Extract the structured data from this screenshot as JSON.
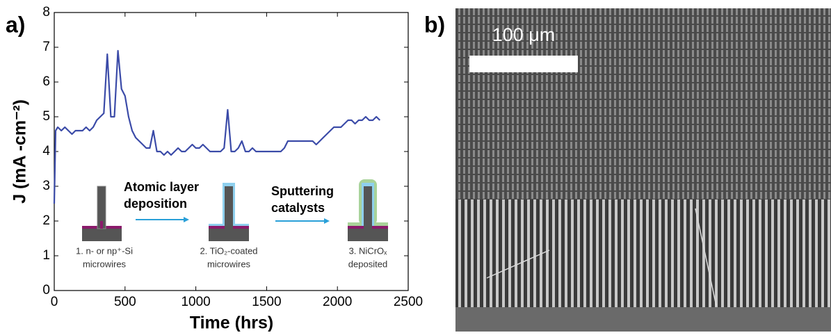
{
  "panels": {
    "a": "a)",
    "b": "b)"
  },
  "chart_data": {
    "type": "line",
    "xlabel": "Time (hrs)",
    "ylabel": "J (mA -cm⁻²)",
    "xlim": [
      0,
      2500
    ],
    "xticks": [
      0,
      500,
      1000,
      1500,
      2000,
      2500
    ],
    "ylim": [
      0,
      8
    ],
    "yticks": [
      0,
      1,
      2,
      3,
      4,
      5,
      6,
      7,
      8
    ],
    "x": [
      0,
      10,
      25,
      50,
      75,
      100,
      125,
      150,
      175,
      200,
      225,
      250,
      275,
      300,
      325,
      350,
      375,
      400,
      425,
      450,
      475,
      500,
      525,
      550,
      575,
      600,
      625,
      650,
      675,
      700,
      725,
      750,
      775,
      800,
      825,
      850,
      875,
      900,
      925,
      950,
      975,
      1000,
      1025,
      1050,
      1075,
      1100,
      1125,
      1150,
      1175,
      1200,
      1225,
      1250,
      1275,
      1300,
      1325,
      1350,
      1375,
      1400,
      1425,
      1450,
      1475,
      1500,
      1525,
      1550,
      1575,
      1600,
      1625,
      1650,
      1675,
      1700,
      1725,
      1750,
      1775,
      1800,
      1825,
      1850,
      1875,
      1900,
      1925,
      1950,
      1975,
      2000,
      2025,
      2050,
      2075,
      2100,
      2125,
      2150,
      2175,
      2200,
      2225,
      2250,
      2275,
      2300
    ],
    "series": [
      {
        "color": "#3b4ba8",
        "values": [
          2.5,
          4.6,
          4.7,
          4.6,
          4.7,
          4.6,
          4.5,
          4.6,
          4.6,
          4.6,
          4.7,
          4.6,
          4.7,
          4.9,
          5.0,
          5.1,
          6.8,
          5.0,
          5.0,
          6.9,
          5.8,
          5.6,
          5.0,
          4.6,
          4.4,
          4.3,
          4.2,
          4.1,
          4.1,
          4.6,
          4.0,
          4.0,
          3.9,
          4.0,
          3.9,
          4.0,
          4.1,
          4.0,
          4.0,
          4.1,
          4.2,
          4.1,
          4.1,
          4.2,
          4.1,
          4.0,
          4.0,
          4.0,
          4.0,
          4.1,
          5.2,
          4.0,
          4.0,
          4.1,
          4.3,
          4.0,
          4.0,
          4.1,
          4.0,
          4.0,
          4.0,
          4.0,
          4.0,
          4.0,
          4.0,
          4.0,
          4.1,
          4.3,
          4.3,
          4.3,
          4.3,
          4.3,
          4.3,
          4.3,
          4.3,
          4.2,
          4.3,
          4.4,
          4.5,
          4.6,
          4.7,
          4.7,
          4.7,
          4.8,
          4.9,
          4.9,
          4.8,
          4.9,
          4.9,
          5.0,
          4.9,
          4.9,
          5.0,
          4.9
        ]
      }
    ],
    "annotations": {
      "step1": [
        "1. n- or np⁺-Si",
        "microwires"
      ],
      "arrow1": [
        "Atomic layer",
        "deposition"
      ],
      "step2": [
        "2. TiO₂-coated",
        "microwires"
      ],
      "arrow2": [
        "Sputtering",
        "catalysts"
      ],
      "step3": [
        "3. NiCrOₓ",
        "deposited"
      ]
    }
  },
  "image": {
    "scale_bar": "100 μm"
  }
}
